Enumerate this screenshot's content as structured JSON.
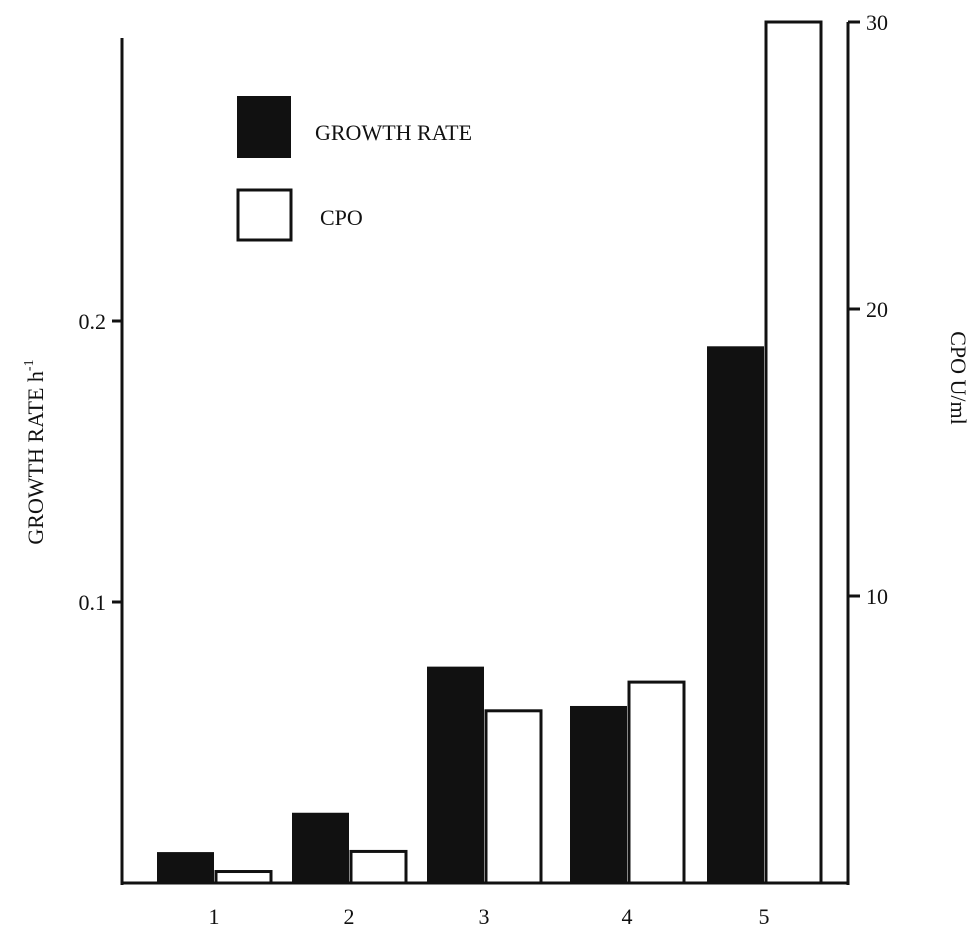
{
  "chart_data": {
    "type": "bar",
    "categories": [
      "1",
      "2",
      "3",
      "4",
      "5"
    ],
    "series": [
      {
        "name": "GROWTH RATE",
        "axis": "left",
        "color": "#111111",
        "fill": "solid",
        "values": [
          0.011,
          0.025,
          0.077,
          0.063,
          0.191
        ]
      },
      {
        "name": "CPO",
        "axis": "right",
        "color": "#111111",
        "fill": "none",
        "values": [
          0.4,
          1.1,
          6.0,
          7.0,
          30.0
        ]
      }
    ],
    "left_axis": {
      "label": "GROWTH RATE h",
      "label_superscript": "-1",
      "ticks": [
        0.1,
        0.2
      ],
      "tick_labels": [
        "0.1",
        "0.2"
      ],
      "range": [
        0,
        0.3
      ]
    },
    "right_axis": {
      "label": "CPO U/ml",
      "ticks": [
        10,
        20,
        30
      ],
      "tick_labels": [
        "10",
        "20",
        "30"
      ],
      "range": [
        0,
        30
      ]
    },
    "grid": false,
    "legend_position": "top-left"
  }
}
